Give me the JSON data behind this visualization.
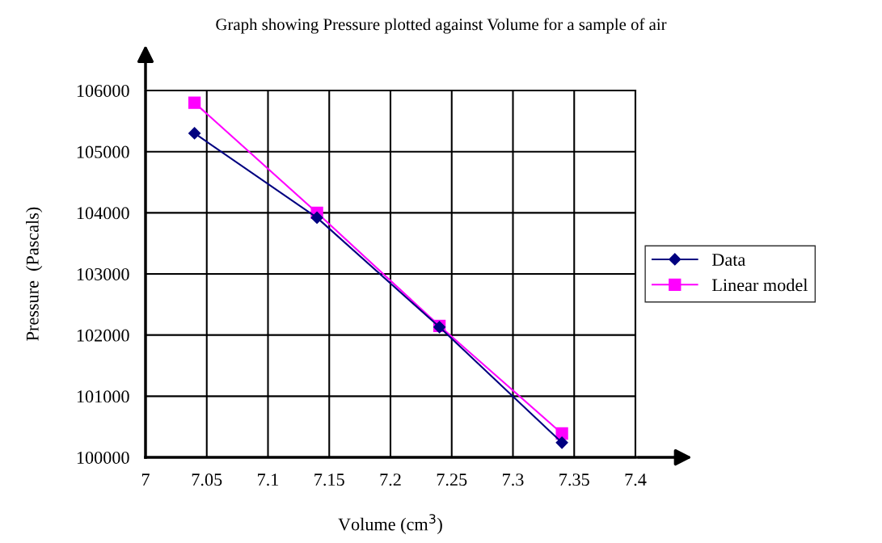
{
  "chart_data": {
    "type": "line",
    "title": "Graph showing Pressure plotted against Volume for a sample of air",
    "xlabel": "Volume (cm$^{3}$)",
    "ylabel": "Pressure  (Pascals)",
    "x": [
      7.04,
      7.14,
      7.24,
      7.34
    ],
    "series": [
      {
        "name": "Data",
        "color": "#000080",
        "values": [
          105300,
          103920,
          102130,
          100240
        ],
        "marker": "diamond"
      },
      {
        "name": "Linear model",
        "color": "#ff00ff",
        "values": [
          105800,
          104000,
          102150,
          100390
        ],
        "marker": "square"
      }
    ],
    "xlim": [
      7,
      7.4
    ],
    "xticks": [
      7,
      7.05,
      7.1,
      7.15,
      7.2,
      7.25,
      7.3,
      7.35,
      7.4
    ],
    "ylim": [
      100000,
      106000
    ],
    "yticks": [
      100000,
      101000,
      102000,
      103000,
      104000,
      105000,
      106000
    ],
    "grid": true,
    "legend": "right",
    "line_style": "solid"
  }
}
